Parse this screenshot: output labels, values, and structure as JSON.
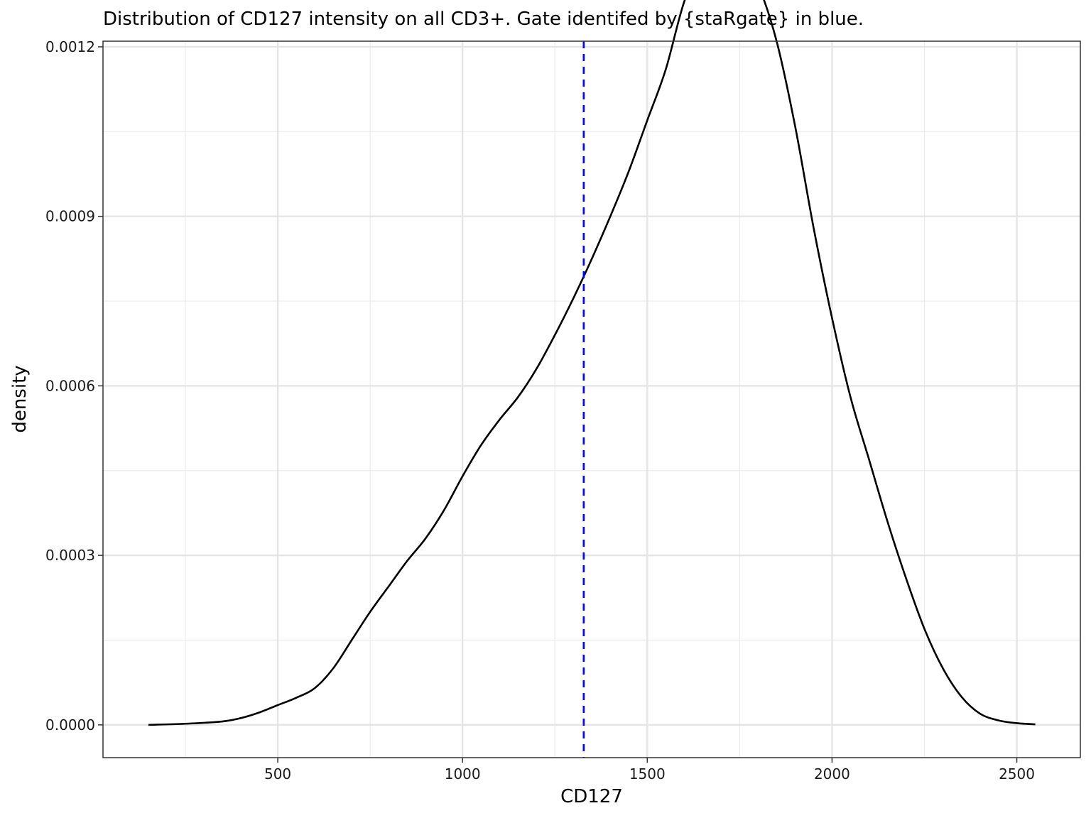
{
  "chart_data": {
    "type": "line",
    "title": "Distribution of CD127 intensity on all CD3+. Gate identifed by {staRgate} in blue.",
    "xlabel": "CD127",
    "ylabel": "density",
    "x_ticks": [
      500,
      1000,
      1500,
      2000,
      2500
    ],
    "x_tick_labels": [
      "500",
      "1000",
      "1500",
      "2000",
      "2500"
    ],
    "y_ticks": [
      0,
      0.0003,
      0.0006,
      0.0009,
      0.0012
    ],
    "y_tick_labels": [
      "0.0000",
      "0.0003",
      "0.0006",
      "0.0009",
      "0.0012"
    ],
    "xlim": [
      27,
      2672
    ],
    "ylim": [
      -5.8e-05,
      0.00121
    ],
    "grid": true,
    "series": [
      {
        "color": "#000000",
        "x": [
          150,
          250,
          350,
          400,
          450,
          500,
          550,
          600,
          650,
          700,
          750,
          800,
          850,
          900,
          950,
          1000,
          1050,
          1100,
          1150,
          1200,
          1250,
          1300,
          1350,
          1400,
          1450,
          1500,
          1550,
          1600,
          1650,
          1700,
          1750,
          1800,
          1850,
          1900,
          1950,
          2000,
          2050,
          2100,
          2150,
          2200,
          2250,
          2300,
          2350,
          2400,
          2450,
          2500,
          2550
        ],
        "y": [
          0.0,
          2e-06,
          6e-06,
          1.2e-05,
          2.2e-05,
          3.5e-05,
          4.8e-05,
          6.5e-05,
          0.0001,
          0.00015,
          0.0002,
          0.000245,
          0.00029,
          0.00033,
          0.00038,
          0.00044,
          0.000495,
          0.00054,
          0.00058,
          0.00063,
          0.00069,
          0.000755,
          0.000825,
          0.0009,
          0.00098,
          0.00107,
          0.00116,
          0.00128,
          0.00135,
          0.00138,
          0.00137,
          0.00131,
          0.00121,
          0.00106,
          0.00088,
          0.00072,
          0.00058,
          0.00047,
          0.00036,
          0.00026,
          0.00017,
          0.0001,
          5e-05,
          2e-05,
          8e-06,
          3e-06,
          1e-06
        ]
      }
    ],
    "vline": {
      "x": 1328,
      "color": "#0000ff",
      "style": "dashed"
    }
  }
}
